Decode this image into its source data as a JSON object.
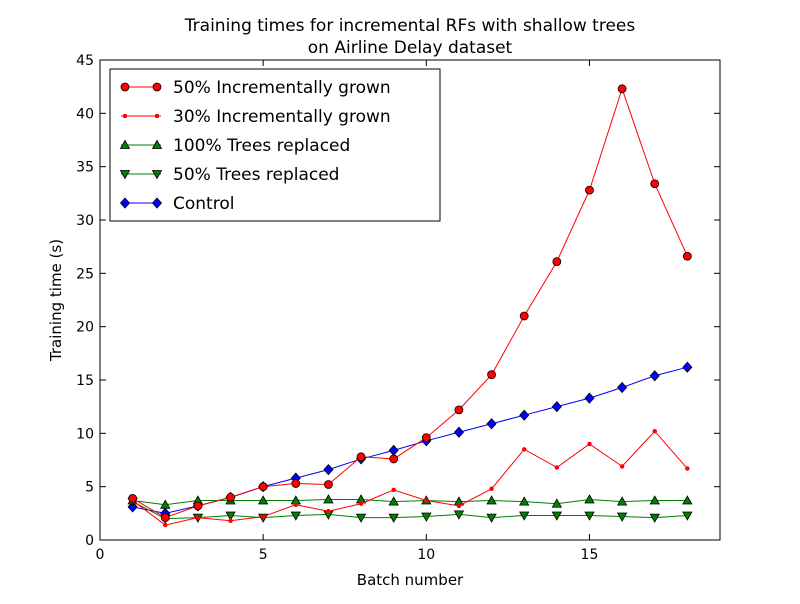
{
  "chart_data": {
    "type": "line",
    "title_line1": "Training times for incremental RFs with shallow trees",
    "title_line2": "on Airline Delay dataset",
    "xlabel": "Batch number",
    "ylabel": "Training time (s)",
    "xlim": [
      0,
      19
    ],
    "ylim": [
      0,
      45
    ],
    "xticks": [
      0,
      5,
      10,
      15
    ],
    "yticks": [
      0,
      5,
      10,
      15,
      20,
      25,
      30,
      35,
      40,
      45
    ],
    "grid": false,
    "legend_position": "top-left",
    "x": [
      1,
      2,
      3,
      4,
      5,
      6,
      7,
      8,
      9,
      10,
      11,
      12,
      13,
      14,
      15,
      16,
      17,
      18
    ],
    "series": [
      {
        "name": "50% Incrementally grown",
        "color": "#ff0000",
        "marker": "circle",
        "values": [
          3.9,
          2.1,
          3.2,
          4.0,
          5.0,
          5.3,
          5.2,
          7.8,
          7.6,
          9.6,
          12.2,
          15.5,
          21.0,
          26.1,
          32.8,
          42.3,
          33.4,
          26.6
        ]
      },
      {
        "name": "30% Incrementally grown",
        "color": "#ff0000",
        "marker": "dot",
        "values": [
          3.7,
          1.4,
          2.1,
          1.8,
          2.2,
          3.3,
          2.7,
          3.4,
          4.7,
          3.7,
          3.2,
          4.8,
          8.5,
          6.8,
          9.0,
          6.9,
          10.2,
          6.7
        ]
      },
      {
        "name": "100% Trees replaced",
        "color": "#007f00",
        "marker": "triangle-up",
        "values": [
          3.7,
          3.3,
          3.7,
          3.7,
          3.7,
          3.7,
          3.8,
          3.8,
          3.6,
          3.7,
          3.6,
          3.7,
          3.6,
          3.4,
          3.8,
          3.6,
          3.7,
          3.7
        ]
      },
      {
        "name": "50% Trees replaced",
        "color": "#007f00",
        "marker": "triangle-down",
        "values": [
          3.6,
          2.0,
          2.1,
          2.3,
          2.1,
          2.3,
          2.4,
          2.1,
          2.1,
          2.2,
          2.4,
          2.1,
          2.3,
          2.3,
          2.3,
          2.2,
          2.1,
          2.3
        ]
      },
      {
        "name": "Control",
        "color": "#0000ff",
        "marker": "diamond",
        "values": [
          3.1,
          2.5,
          3.2,
          4.0,
          5.0,
          5.8,
          6.6,
          7.6,
          8.4,
          9.3,
          10.1,
          10.9,
          11.7,
          12.5,
          13.3,
          14.3,
          15.4,
          16.2
        ]
      }
    ]
  }
}
